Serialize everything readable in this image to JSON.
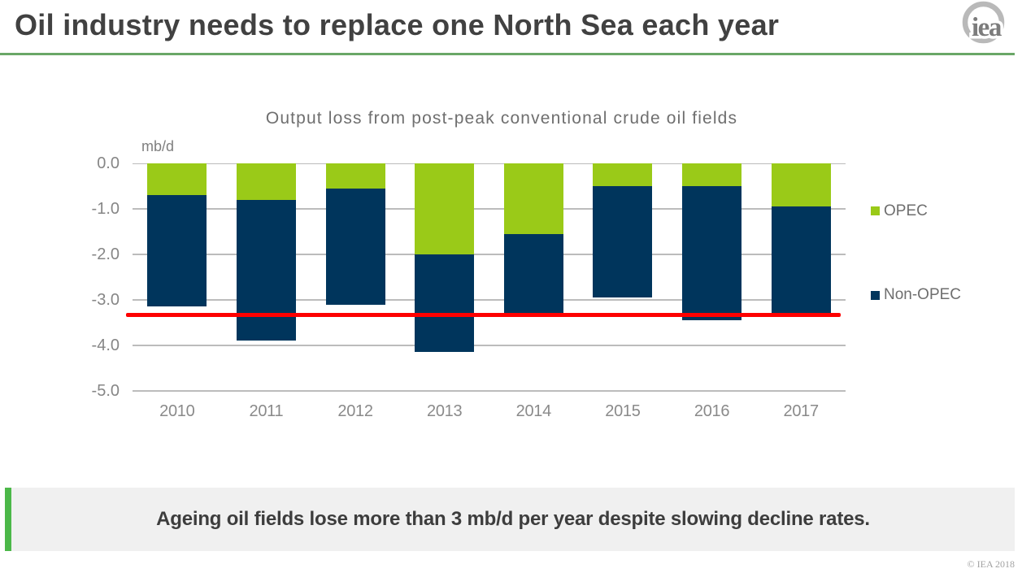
{
  "header": {
    "title": "Oil industry needs to replace one North Sea each year",
    "logo_text": "iea",
    "rule_color": "#6aa767"
  },
  "chart_data": {
    "type": "bar",
    "stacked": true,
    "title": "Output loss from post-peak conventional crude oil fields",
    "unit_label": "mb/d",
    "xlabel": "",
    "ylabel": "mb/d",
    "categories": [
      "2010",
      "2011",
      "2012",
      "2013",
      "2014",
      "2015",
      "2016",
      "2017"
    ],
    "series": [
      {
        "name": "OPEC",
        "color": "#9aca18",
        "values": [
          -0.7,
          -0.8,
          -0.55,
          -2.0,
          -1.55,
          -0.5,
          -0.5,
          -0.95
        ]
      },
      {
        "name": "Non-OPEC",
        "color": "#00355c",
        "values": [
          -2.45,
          -3.1,
          -2.55,
          -2.15,
          -1.75,
          -2.45,
          -2.95,
          -2.35
        ]
      }
    ],
    "ylim": [
      -5,
      0
    ],
    "yticks": [
      0,
      -1,
      -2,
      -3,
      -4,
      -5
    ],
    "ytick_labels": [
      "0.0",
      "-1.0",
      "-2.0",
      "-3.0",
      "-4.0",
      "-5.0"
    ],
    "grid": "horizontal",
    "gridline_color": "#bcbcbc",
    "legend_position": "right",
    "threshold_line": {
      "value": -3.33,
      "color": "#fe0000"
    }
  },
  "footer": {
    "message": "Ageing oil fields lose more than 3 mb/d per year despite slowing decline rates.",
    "accent_color": "#4cb849",
    "copyright": "© IEA 2018"
  }
}
